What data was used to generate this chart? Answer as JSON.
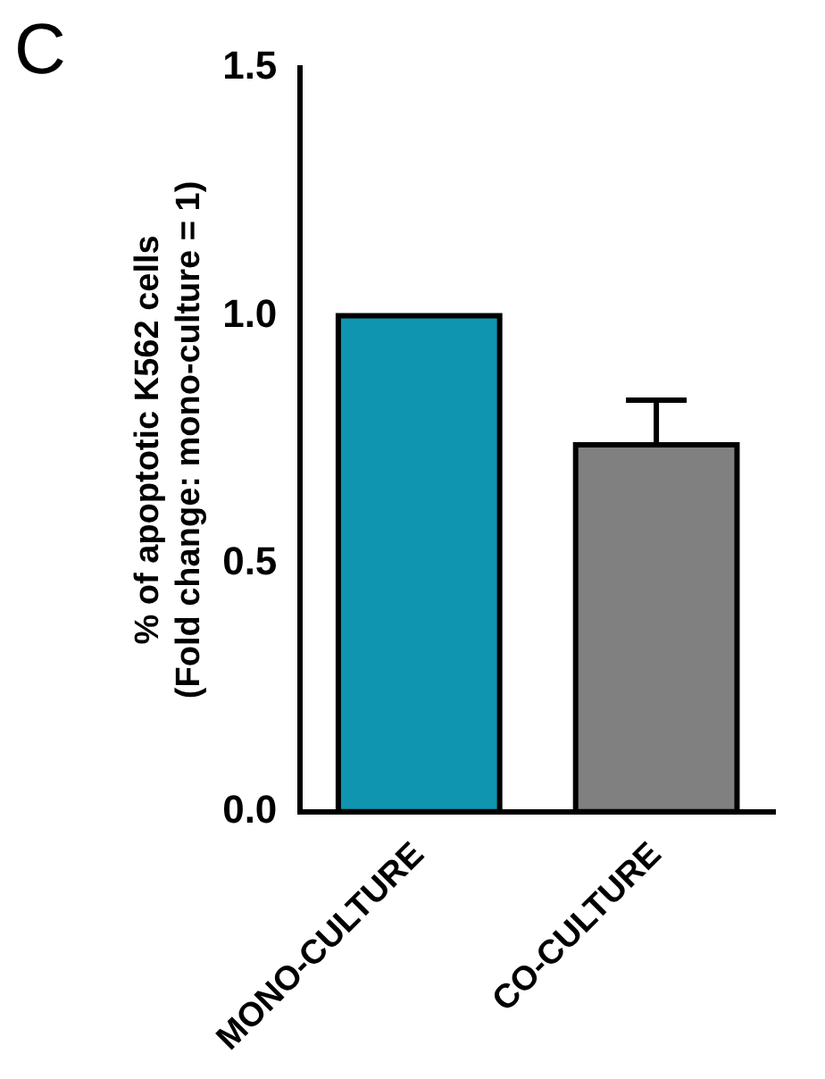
{
  "chart_data": {
    "type": "bar",
    "ylabel": "% of apoptotic K562 cells\n(Fold change: mono-culture = 1)",
    "annotations": [
      "C"
    ],
    "categories": [
      "MONO-CULTURE",
      "CO-CULTURE"
    ],
    "values": [
      1.0,
      0.74
    ],
    "colors": [
      "#1095b0",
      "#808080"
    ],
    "errors": [
      null,
      [
        0.74,
        0.83
      ]
    ],
    "ylim": [
      0,
      1.5
    ],
    "yticks": [
      {
        "value": 0,
        "label": "0.0"
      },
      {
        "value": 0.5,
        "label": "0.5"
      },
      {
        "value": 1,
        "label": "1.0"
      },
      {
        "value": 1.5,
        "label": "1.5"
      }
    ],
    "grid": false,
    "legend": false
  }
}
